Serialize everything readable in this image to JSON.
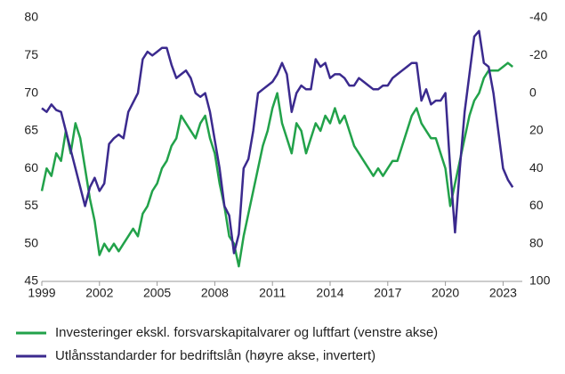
{
  "chart_data": {
    "type": "line",
    "x": [
      1999.0,
      1999.25,
      1999.5,
      1999.75,
      2000.0,
      2000.25,
      2000.5,
      2000.75,
      2001.0,
      2001.25,
      2001.5,
      2001.75,
      2002.0,
      2002.25,
      2002.5,
      2002.75,
      2003.0,
      2003.25,
      2003.5,
      2003.75,
      2004.0,
      2004.25,
      2004.5,
      2004.75,
      2005.0,
      2005.25,
      2005.5,
      2005.75,
      2006.0,
      2006.25,
      2006.5,
      2006.75,
      2007.0,
      2007.25,
      2007.5,
      2007.75,
      2008.0,
      2008.25,
      2008.5,
      2008.75,
      2009.0,
      2009.25,
      2009.5,
      2009.75,
      2010.0,
      2010.25,
      2010.5,
      2010.75,
      2011.0,
      2011.25,
      2011.5,
      2011.75,
      2012.0,
      2012.25,
      2012.5,
      2012.75,
      2013.0,
      2013.25,
      2013.5,
      2013.75,
      2014.0,
      2014.25,
      2014.5,
      2014.75,
      2015.0,
      2015.25,
      2015.5,
      2015.75,
      2016.0,
      2016.25,
      2016.5,
      2016.75,
      2017.0,
      2017.25,
      2017.5,
      2017.75,
      2018.0,
      2018.25,
      2018.5,
      2018.75,
      2019.0,
      2019.25,
      2019.5,
      2019.75,
      2020.0,
      2020.25,
      2020.5,
      2020.75,
      2021.0,
      2021.25,
      2021.5,
      2021.75,
      2022.0,
      2022.25,
      2022.5,
      2022.75,
      2023.0,
      2023.25,
      2023.5
    ],
    "series": [
      {
        "name": "Investeringer ekskl. forsvarskapitalvarer og luftfart (venstre akse)",
        "color": "#22a24a",
        "axis": "y",
        "values": [
          57,
          60,
          59,
          62,
          61,
          65,
          62,
          66,
          64,
          60,
          56,
          53,
          48.5,
          50,
          49,
          50,
          49,
          50,
          51,
          52,
          51,
          54,
          55,
          57,
          58,
          60,
          61,
          63,
          64,
          67,
          66,
          65,
          64,
          66,
          67,
          64,
          62,
          58,
          55,
          51,
          50,
          47,
          51,
          54,
          57,
          60,
          63,
          65,
          68,
          70,
          66,
          64,
          62,
          66,
          65,
          62,
          64,
          66,
          65,
          67,
          66,
          68,
          66,
          67,
          65,
          63,
          62,
          61,
          60,
          59,
          60,
          59,
          60,
          61,
          61,
          63,
          65,
          67,
          68,
          66,
          65,
          64,
          64,
          62,
          60,
          55,
          58,
          61,
          64,
          67,
          69,
          70,
          72,
          73,
          73,
          73,
          73.5,
          74,
          73.5
        ]
      },
      {
        "name": "Utlånsstandarder for bedriftslån (høyre akse, invertert)",
        "color": "#3b2a8e",
        "axis": "y2",
        "values": [
          8,
          10,
          6,
          9,
          10,
          20,
          30,
          40,
          50,
          60,
          50,
          45,
          52,
          48,
          27,
          24,
          22,
          24,
          10,
          5,
          0,
          -18,
          -22,
          -20,
          -22,
          -24,
          -24,
          -15,
          -8,
          -10,
          -12,
          -8,
          0,
          2,
          0,
          10,
          25,
          40,
          60,
          65,
          85,
          75,
          40,
          35,
          20,
          0,
          -2,
          -4,
          -6,
          -10,
          -16,
          -10,
          10,
          0,
          -4,
          -2,
          -2,
          -18,
          -14,
          -16,
          -8,
          -10,
          -10,
          -8,
          -4,
          -4,
          -8,
          -6,
          -4,
          -2,
          -2,
          -4,
          -4,
          -8,
          -10,
          -12,
          -14,
          -16,
          -16,
          4,
          -2,
          6,
          4,
          4,
          0,
          40,
          74,
          40,
          10,
          -10,
          -30,
          -33,
          -16,
          -14,
          0,
          20,
          40,
          46,
          50
        ]
      }
    ],
    "xlim": [
      1999,
      2024
    ],
    "xticks": [
      1999,
      2002,
      2005,
      2008,
      2011,
      2014,
      2017,
      2020,
      2023
    ],
    "ylim": [
      45,
      80
    ],
    "yticks": [
      45,
      50,
      55,
      60,
      65,
      70,
      75,
      80
    ],
    "y2lim": [
      -40,
      100
    ],
    "y2ticks": [
      -40,
      -20,
      0,
      20,
      40,
      60,
      80,
      100
    ],
    "y2_inverted": true,
    "grid": false,
    "legend": "bottom"
  }
}
